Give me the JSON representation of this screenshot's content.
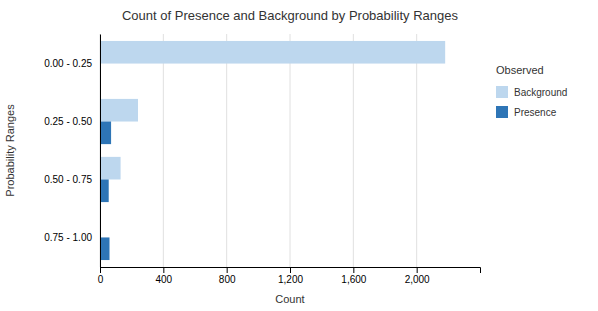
{
  "chart_data": {
    "type": "bar",
    "orientation": "horizontal",
    "title": "Count of Presence and Background by Probability Ranges",
    "xlabel": "Count",
    "ylabel": "Probability Ranges",
    "categories": [
      "0.00 - 0.25",
      "0.25 - 0.50",
      "0.50 - 0.75",
      "0.75 - 1.00"
    ],
    "series": [
      {
        "name": "Background",
        "color": "#bdd7ee",
        "values": [
          2180,
          240,
          130,
          5
        ]
      },
      {
        "name": "Presence",
        "color": "#2e75b6",
        "values": [
          0,
          70,
          55,
          60
        ]
      }
    ],
    "xlim": [
      0,
      2400
    ],
    "xticks": [
      0,
      400,
      800,
      {
        "value": 1200,
        "label": "1,200"
      },
      {
        "value": 1600,
        "label": "1,600"
      },
      {
        "value": 2000,
        "label": "2,000"
      }
    ],
    "grid": true,
    "legend_title": "Observed",
    "legend": "right"
  }
}
